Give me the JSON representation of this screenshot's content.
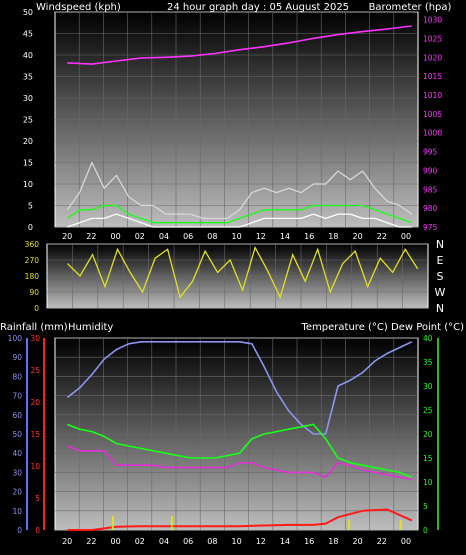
{
  "chart_data": [
    {
      "type": "line",
      "panel": "wind-barometer",
      "title": "24 hour graph day : 05 August 2025",
      "ylabel_left": "Windspeed (kph)",
      "ylabel_right": "Barometer (hpa)",
      "ylim_left": [
        0,
        50
      ],
      "ylim_right": [
        975,
        1032
      ],
      "yticks_left": [
        "0",
        "5",
        "10",
        "15",
        "20",
        "25",
        "30",
        "35",
        "40",
        "45",
        "50"
      ],
      "yticks_right": [
        "975",
        "980",
        "985",
        "990",
        "995",
        "1000",
        "1005",
        "1010",
        "1015",
        "1020",
        "1025",
        "1030"
      ],
      "xticks": [
        "20",
        "22",
        "00",
        "02",
        "04",
        "06",
        "08",
        "10",
        "12",
        "14",
        "16",
        "18",
        "20",
        "22",
        "00"
      ],
      "grid": true,
      "series": [
        {
          "role": "wind-gust",
          "color": "#d8d8d8",
          "x": [
            0,
            1,
            2,
            3,
            4,
            5,
            6,
            7,
            8,
            9,
            10,
            11,
            12,
            13,
            14,
            15,
            16,
            17,
            18,
            19,
            20,
            21,
            22,
            23,
            24,
            25,
            26,
            27,
            28
          ],
          "values": [
            4,
            8,
            15,
            9,
            12,
            7,
            5,
            5,
            3,
            3,
            3,
            2,
            2,
            2,
            4,
            8,
            9,
            8,
            9,
            8,
            10,
            10,
            13,
            11,
            13,
            9,
            6,
            5,
            3
          ]
        },
        {
          "role": "wind-average",
          "color": "#1aff1a",
          "x": [
            0,
            1,
            2,
            3,
            4,
            5,
            6,
            7,
            8,
            9,
            10,
            11,
            12,
            13,
            14,
            15,
            16,
            17,
            18,
            19,
            20,
            21,
            22,
            23,
            24,
            25,
            26,
            27,
            28
          ],
          "values": [
            2,
            4,
            4,
            5,
            5,
            3,
            2,
            1,
            1,
            1,
            1,
            1,
            1,
            1,
            2,
            3,
            4,
            4,
            4,
            4,
            5,
            5,
            5,
            5,
            5,
            4,
            3,
            2,
            1
          ]
        },
        {
          "role": "wind-lull",
          "color": "#ffffff",
          "x": [
            0,
            1,
            2,
            3,
            4,
            5,
            6,
            7,
            8,
            9,
            10,
            11,
            12,
            13,
            14,
            15,
            16,
            17,
            18,
            19,
            20,
            21,
            22,
            23,
            24,
            25,
            26,
            27,
            28
          ],
          "values": [
            0,
            1,
            2,
            2,
            3,
            2,
            1,
            0,
            0,
            0,
            0,
            0,
            0,
            0,
            0,
            1,
            2,
            2,
            2,
            2,
            3,
            2,
            3,
            3,
            2,
            2,
            1,
            0,
            0
          ]
        },
        {
          "role": "barometer",
          "color": "#ff33ff",
          "axis": "right",
          "x": [
            0,
            2,
            4,
            6,
            8,
            10,
            12,
            14,
            16,
            18,
            20,
            22,
            24,
            26,
            28
          ],
          "values": [
            1018.5,
            1018.2,
            1019.0,
            1019.8,
            1020.0,
            1020.3,
            1021.0,
            1022.0,
            1022.8,
            1023.8,
            1025.0,
            1026.0,
            1026.8,
            1027.5,
            1028.3
          ]
        }
      ]
    },
    {
      "type": "line",
      "panel": "wind-direction",
      "ylim": [
        0,
        360
      ],
      "yticks": [
        "0",
        "90",
        "180",
        "270",
        "360"
      ],
      "compass": [
        "N",
        "W",
        "S",
        "E",
        "N"
      ],
      "grid": true,
      "series": [
        {
          "role": "wind-direction",
          "color": "#e0e020",
          "x": [
            0,
            1,
            2,
            3,
            4,
            5,
            6,
            7,
            8,
            9,
            10,
            11,
            12,
            13,
            14,
            15,
            16,
            17,
            18,
            19,
            20,
            21,
            22,
            23,
            24,
            25,
            26,
            27,
            28
          ],
          "values": [
            250,
            180,
            300,
            120,
            330,
            200,
            90,
            280,
            330,
            60,
            150,
            320,
            200,
            270,
            100,
            340,
            210,
            60,
            300,
            150,
            330,
            90,
            250,
            320,
            120,
            280,
            200,
            330,
            220
          ]
        }
      ]
    },
    {
      "type": "line",
      "panel": "rain-humidity-temperature",
      "ylabel_left_rain": "Rainfall (mm)",
      "ylabel_left_humidity": "Humidity",
      "ylabel_right": "Temperature (°C) Dew Point (°C)",
      "ylim_humidity": [
        0,
        100
      ],
      "ylim_rain": [
        0,
        30
      ],
      "ylim_temp": [
        0,
        40
      ],
      "yticks_humidity": [
        "0",
        "10",
        "20",
        "30",
        "40",
        "50",
        "60",
        "70",
        "80",
        "90",
        "100"
      ],
      "yticks_rain": [
        "0",
        "5",
        "10",
        "15",
        "20",
        "25",
        "30"
      ],
      "yticks_temp": [
        "0",
        "5",
        "10",
        "15",
        "20",
        "25",
        "30",
        "35",
        "40"
      ],
      "xticks": [
        "20",
        "22",
        "00",
        "02",
        "04",
        "06",
        "08",
        "10",
        "12",
        "14",
        "16",
        "18",
        "20",
        "22",
        "00"
      ],
      "grid": true,
      "series": [
        {
          "role": "humidity",
          "color": "#8c96f0",
          "axis": "humidity",
          "x": [
            0,
            1,
            2,
            3,
            4,
            5,
            6,
            7,
            8,
            9,
            10,
            11,
            12,
            13,
            14,
            15,
            16,
            17,
            18,
            19,
            20,
            21,
            22,
            23,
            24,
            25,
            26,
            27,
            28
          ],
          "values": [
            69,
            74,
            81,
            89,
            94,
            97,
            98,
            98,
            98,
            98,
            98,
            98,
            98,
            98,
            98,
            97,
            85,
            72,
            62,
            55,
            50,
            50,
            75,
            78,
            82,
            88,
            92,
            95,
            98
          ]
        },
        {
          "role": "temperature",
          "color": "#1aff1a",
          "axis": "temp",
          "x": [
            0,
            1,
            2,
            3,
            4,
            5,
            6,
            7,
            8,
            9,
            10,
            11,
            12,
            13,
            14,
            15,
            16,
            17,
            18,
            19,
            20,
            21,
            22,
            23,
            24,
            25,
            26,
            27,
            28
          ],
          "values": [
            22,
            21,
            20.5,
            19.5,
            18,
            17.5,
            17,
            16.5,
            16,
            15.5,
            15,
            15,
            15,
            15.5,
            16,
            19,
            20,
            20.5,
            21,
            21.5,
            22,
            19,
            15,
            14,
            13.5,
            13,
            12.5,
            12,
            11
          ]
        },
        {
          "role": "dew-point",
          "color": "#e030d8",
          "axis": "temp",
          "x": [
            0,
            1,
            2,
            3,
            4,
            5,
            6,
            7,
            8,
            9,
            10,
            11,
            12,
            13,
            14,
            15,
            16,
            17,
            18,
            19,
            20,
            21,
            22,
            23,
            24,
            25,
            26,
            27,
            28
          ],
          "values": [
            17.5,
            16.5,
            16.5,
            16.5,
            13.5,
            13.5,
            13.5,
            13.5,
            13,
            13,
            13,
            13,
            13,
            13,
            14,
            14,
            13,
            12.5,
            12,
            12,
            12,
            11,
            14,
            13.5,
            12.5,
            12,
            11.5,
            11,
            10.5
          ]
        },
        {
          "role": "rainfall-total",
          "color": "#ff1a1a",
          "axis": "rain",
          "x": [
            0,
            2,
            4,
            6,
            8,
            10,
            12,
            14,
            16,
            18,
            20,
            21,
            22,
            24,
            26,
            28
          ],
          "values": [
            0,
            0,
            0.5,
            0.6,
            0.6,
            0.6,
            0.6,
            0.6,
            0.7,
            0.8,
            0.8,
            1.0,
            2.0,
            3.0,
            3.2,
            1.5
          ]
        },
        {
          "role": "rainfall-rate",
          "color": "#e0e020",
          "axis": "rain",
          "x": [
            3.7,
            8.5,
            22.9,
            27.1
          ],
          "values": [
            2.2,
            2.2,
            1.6,
            1.6
          ]
        }
      ]
    }
  ]
}
